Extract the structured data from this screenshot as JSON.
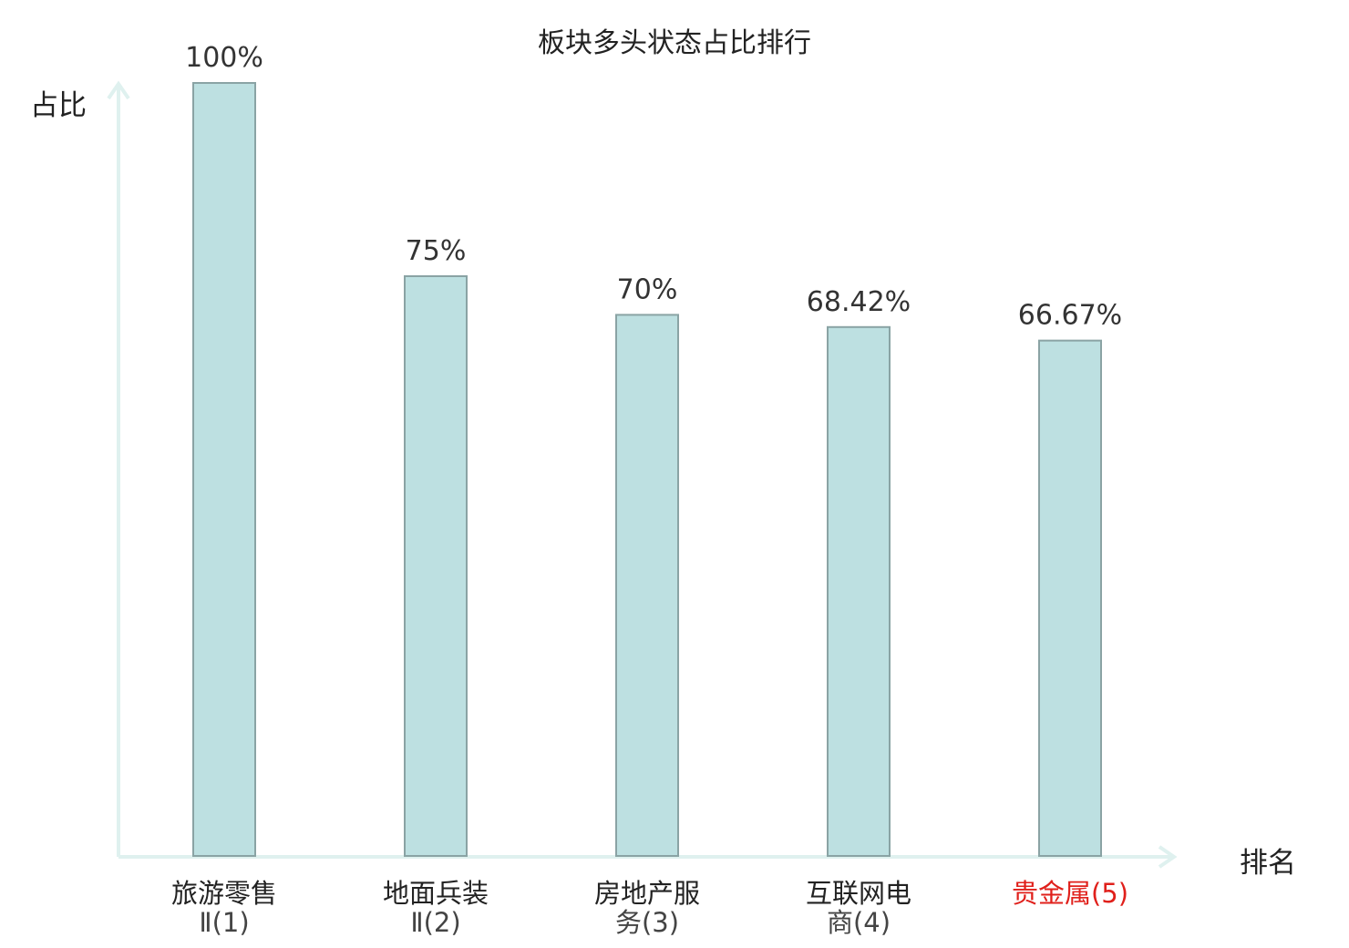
{
  "chart_data": {
    "type": "bar",
    "title": "板块多头状态占比排行",
    "ylabel": "占比",
    "xlabel": "排名",
    "ylim": [
      0,
      100
    ],
    "grid": false,
    "categories": [
      {
        "line1": "旅游零售",
        "line2": "Ⅱ(1)"
      },
      {
        "line1": "地面兵装",
        "line2": "Ⅱ(2)"
      },
      {
        "line1": "房地产服",
        "line2": "务(3)"
      },
      {
        "line1": "互联网电",
        "line2": "商(4)"
      },
      {
        "line1": "贵金属(5)",
        "line2": ""
      }
    ],
    "values": [
      100,
      75,
      70,
      68.42,
      66.67
    ],
    "value_labels": [
      "100%",
      "75%",
      "70%",
      "68.42%",
      "66.67%"
    ],
    "highlight_index": 4,
    "colors": {
      "bar_fill": "#bde0e1",
      "bar_stroke": "#8aa3a4",
      "axis": "#dff1ef",
      "highlight_text": "#e0201b",
      "text": "#222222"
    }
  }
}
